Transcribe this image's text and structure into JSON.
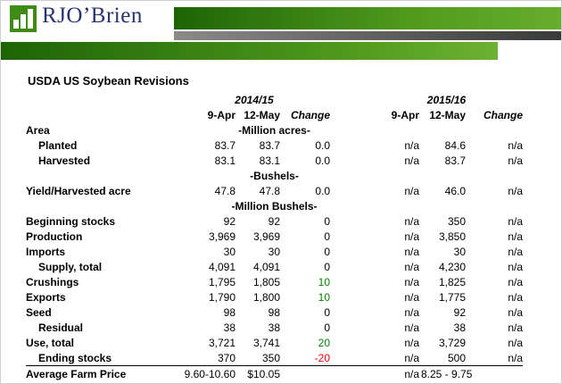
{
  "brand": {
    "name": "RJO’Brien"
  },
  "title": "USDA US Soybean Revisions",
  "colors": {
    "header_green": "#3e8c13",
    "header_dark_bar": "#3a3a3a",
    "brand_navy": "#27336d",
    "positive_change": "#008000",
    "negative_change": "#ef0000"
  },
  "table": {
    "year_groups": [
      "2014/15",
      "2015/16"
    ],
    "column_headers": [
      "9-Apr",
      "12-May",
      "Change",
      "9-Apr",
      "12-May",
      "Change"
    ],
    "rows": [
      {
        "label": "Area",
        "unit": "-Million acres-"
      },
      {
        "label": "Planted",
        "indent": true,
        "values": [
          "83.7",
          "83.7",
          "0.0",
          "n/a",
          "84.6",
          "n/a"
        ]
      },
      {
        "label": "Harvested",
        "indent": true,
        "values": [
          "83.1",
          "83.1",
          "0.0",
          "n/a",
          "83.7",
          "n/a"
        ]
      },
      {
        "label": "",
        "unit": "-Bushels-"
      },
      {
        "label": "Yield/Harvested acre",
        "values": [
          "47.8",
          "47.8",
          "0.0",
          "n/a",
          "46.0",
          "n/a"
        ]
      },
      {
        "label": "",
        "unit": "-Million Bushels-"
      },
      {
        "label": "Beginning stocks",
        "values": [
          "92",
          "92",
          "0",
          "n/a",
          "350",
          "n/a"
        ]
      },
      {
        "label": "Production",
        "values": [
          "3,969",
          "3,969",
          "0",
          "n/a",
          "3,850",
          "n/a"
        ]
      },
      {
        "label": "Imports",
        "values": [
          "30",
          "30",
          "0",
          "n/a",
          "30",
          "n/a"
        ]
      },
      {
        "label": "Supply, total",
        "indent": true,
        "values": [
          "4,091",
          "4,091",
          "0",
          "n/a",
          "4,230",
          "n/a"
        ]
      },
      {
        "label": "Crushings",
        "change_class": "pos",
        "values": [
          "1,795",
          "1,805",
          "10",
          "n/a",
          "1,825",
          "n/a"
        ]
      },
      {
        "label": "Exports",
        "change_class": "pos",
        "values": [
          "1,790",
          "1,800",
          "10",
          "n/a",
          "1,775",
          "n/a"
        ]
      },
      {
        "label": "Seed",
        "values": [
          "98",
          "98",
          "0",
          "n/a",
          "92",
          "n/a"
        ]
      },
      {
        "label": "Residual",
        "indent": true,
        "values": [
          "38",
          "38",
          "0",
          "n/a",
          "38",
          "n/a"
        ]
      },
      {
        "label": "Use, total",
        "change_class": "pos",
        "values": [
          "3,721",
          "3,741",
          "20",
          "n/a",
          "3,729",
          "n/a"
        ]
      },
      {
        "label": "Ending stocks",
        "indent": true,
        "change_class": "neg",
        "values": [
          "370",
          "350",
          "-20",
          "n/a",
          "500",
          "n/a"
        ]
      },
      {
        "label": "Average Farm Price",
        "rule_above": true,
        "span2_last": true,
        "values": [
          "9.60-10.60",
          "$10.05",
          "",
          "n/a",
          "8.25 - 9.75"
        ]
      }
    ]
  }
}
